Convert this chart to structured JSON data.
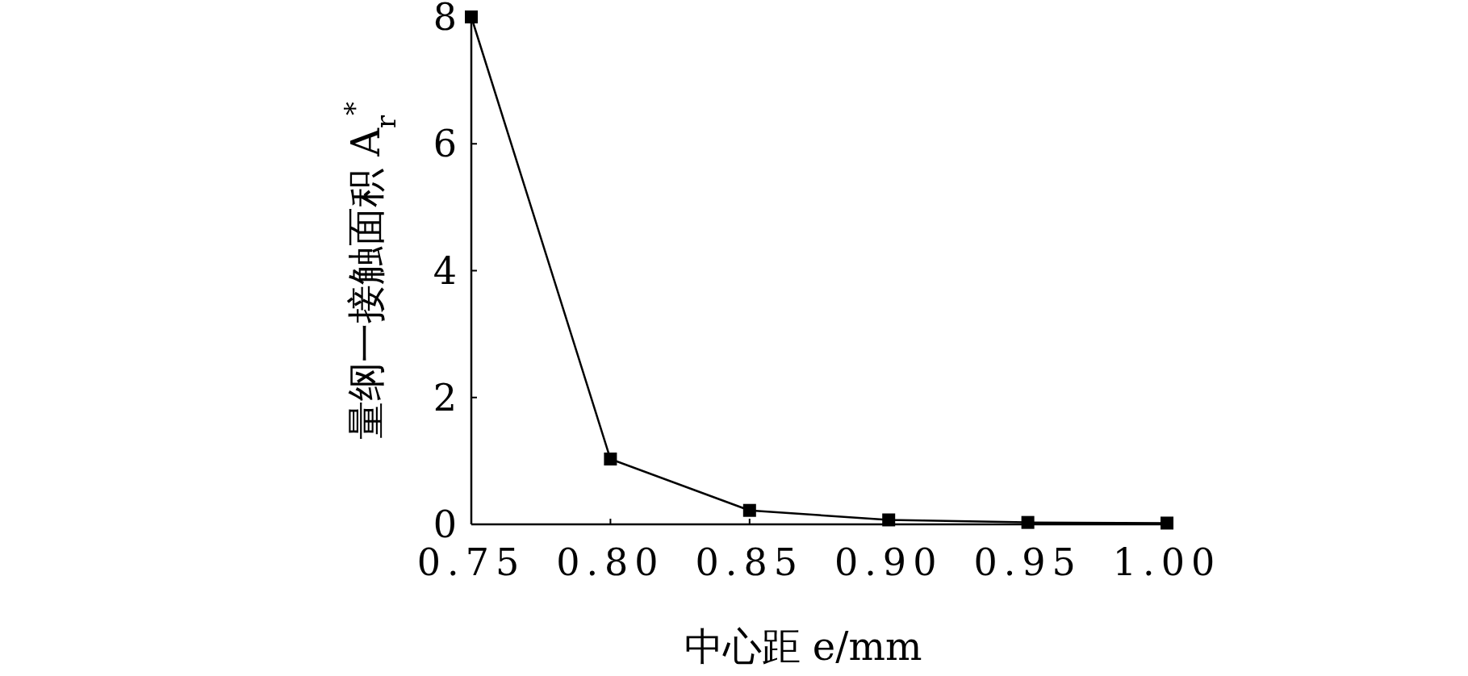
{
  "chart_data": {
    "type": "line",
    "xlabel": "中心距 e/mm",
    "ylabel": "量纲一接触面积 A$_{r}$$^{*}$",
    "x": [
      0.75,
      0.8,
      0.85,
      0.9,
      0.95,
      1.0
    ],
    "series": [
      {
        "color": "#000000",
        "values": [
          8,
          1.03,
          0.22,
          0.07,
          0.03,
          0.02
        ]
      }
    ],
    "xlim": [
      0.75,
      1.0
    ],
    "ylim": [
      0,
      8
    ],
    "xticks": [
      0.75,
      {
        "value": 0.8,
        "label": "0.80"
      },
      0.85,
      {
        "value": 0.9,
        "label": "0.90"
      },
      0.95,
      {
        "value": 1.0,
        "label": "1.00"
      }
    ],
    "yticks": [
      0,
      2,
      4,
      6,
      8
    ],
    "marker": "square",
    "line_style": "solid",
    "grid": false
  }
}
